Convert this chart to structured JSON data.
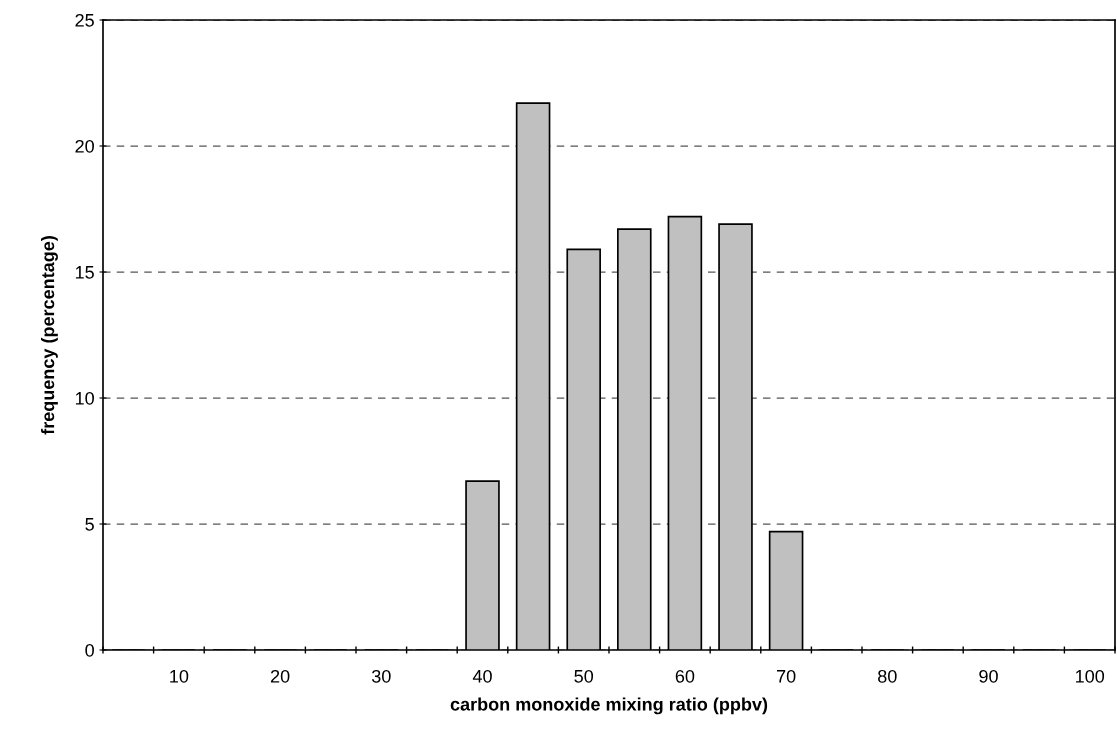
{
  "chart_data": {
    "type": "bar",
    "xlabel": "carbon monoxide mixing ratio (ppbv)",
    "ylabel": "frequency (percentage)",
    "categories": [
      null,
      "10",
      null,
      "20",
      null,
      "30",
      null,
      "40",
      null,
      "50",
      null,
      "60",
      null,
      "70",
      null,
      "80",
      null,
      "90",
      null,
      "100"
    ],
    "values": [
      0,
      0,
      0,
      0,
      0,
      0,
      0,
      6.7,
      21.7,
      15.9,
      16.7,
      17.2,
      16.9,
      4.7,
      0,
      0,
      0,
      0,
      0,
      0
    ],
    "color": "#c0c0c0",
    "ylim": [
      0,
      25
    ],
    "yticks": [
      0,
      5,
      10,
      15,
      20,
      25
    ],
    "grid": "y",
    "line_style": "dashed"
  }
}
